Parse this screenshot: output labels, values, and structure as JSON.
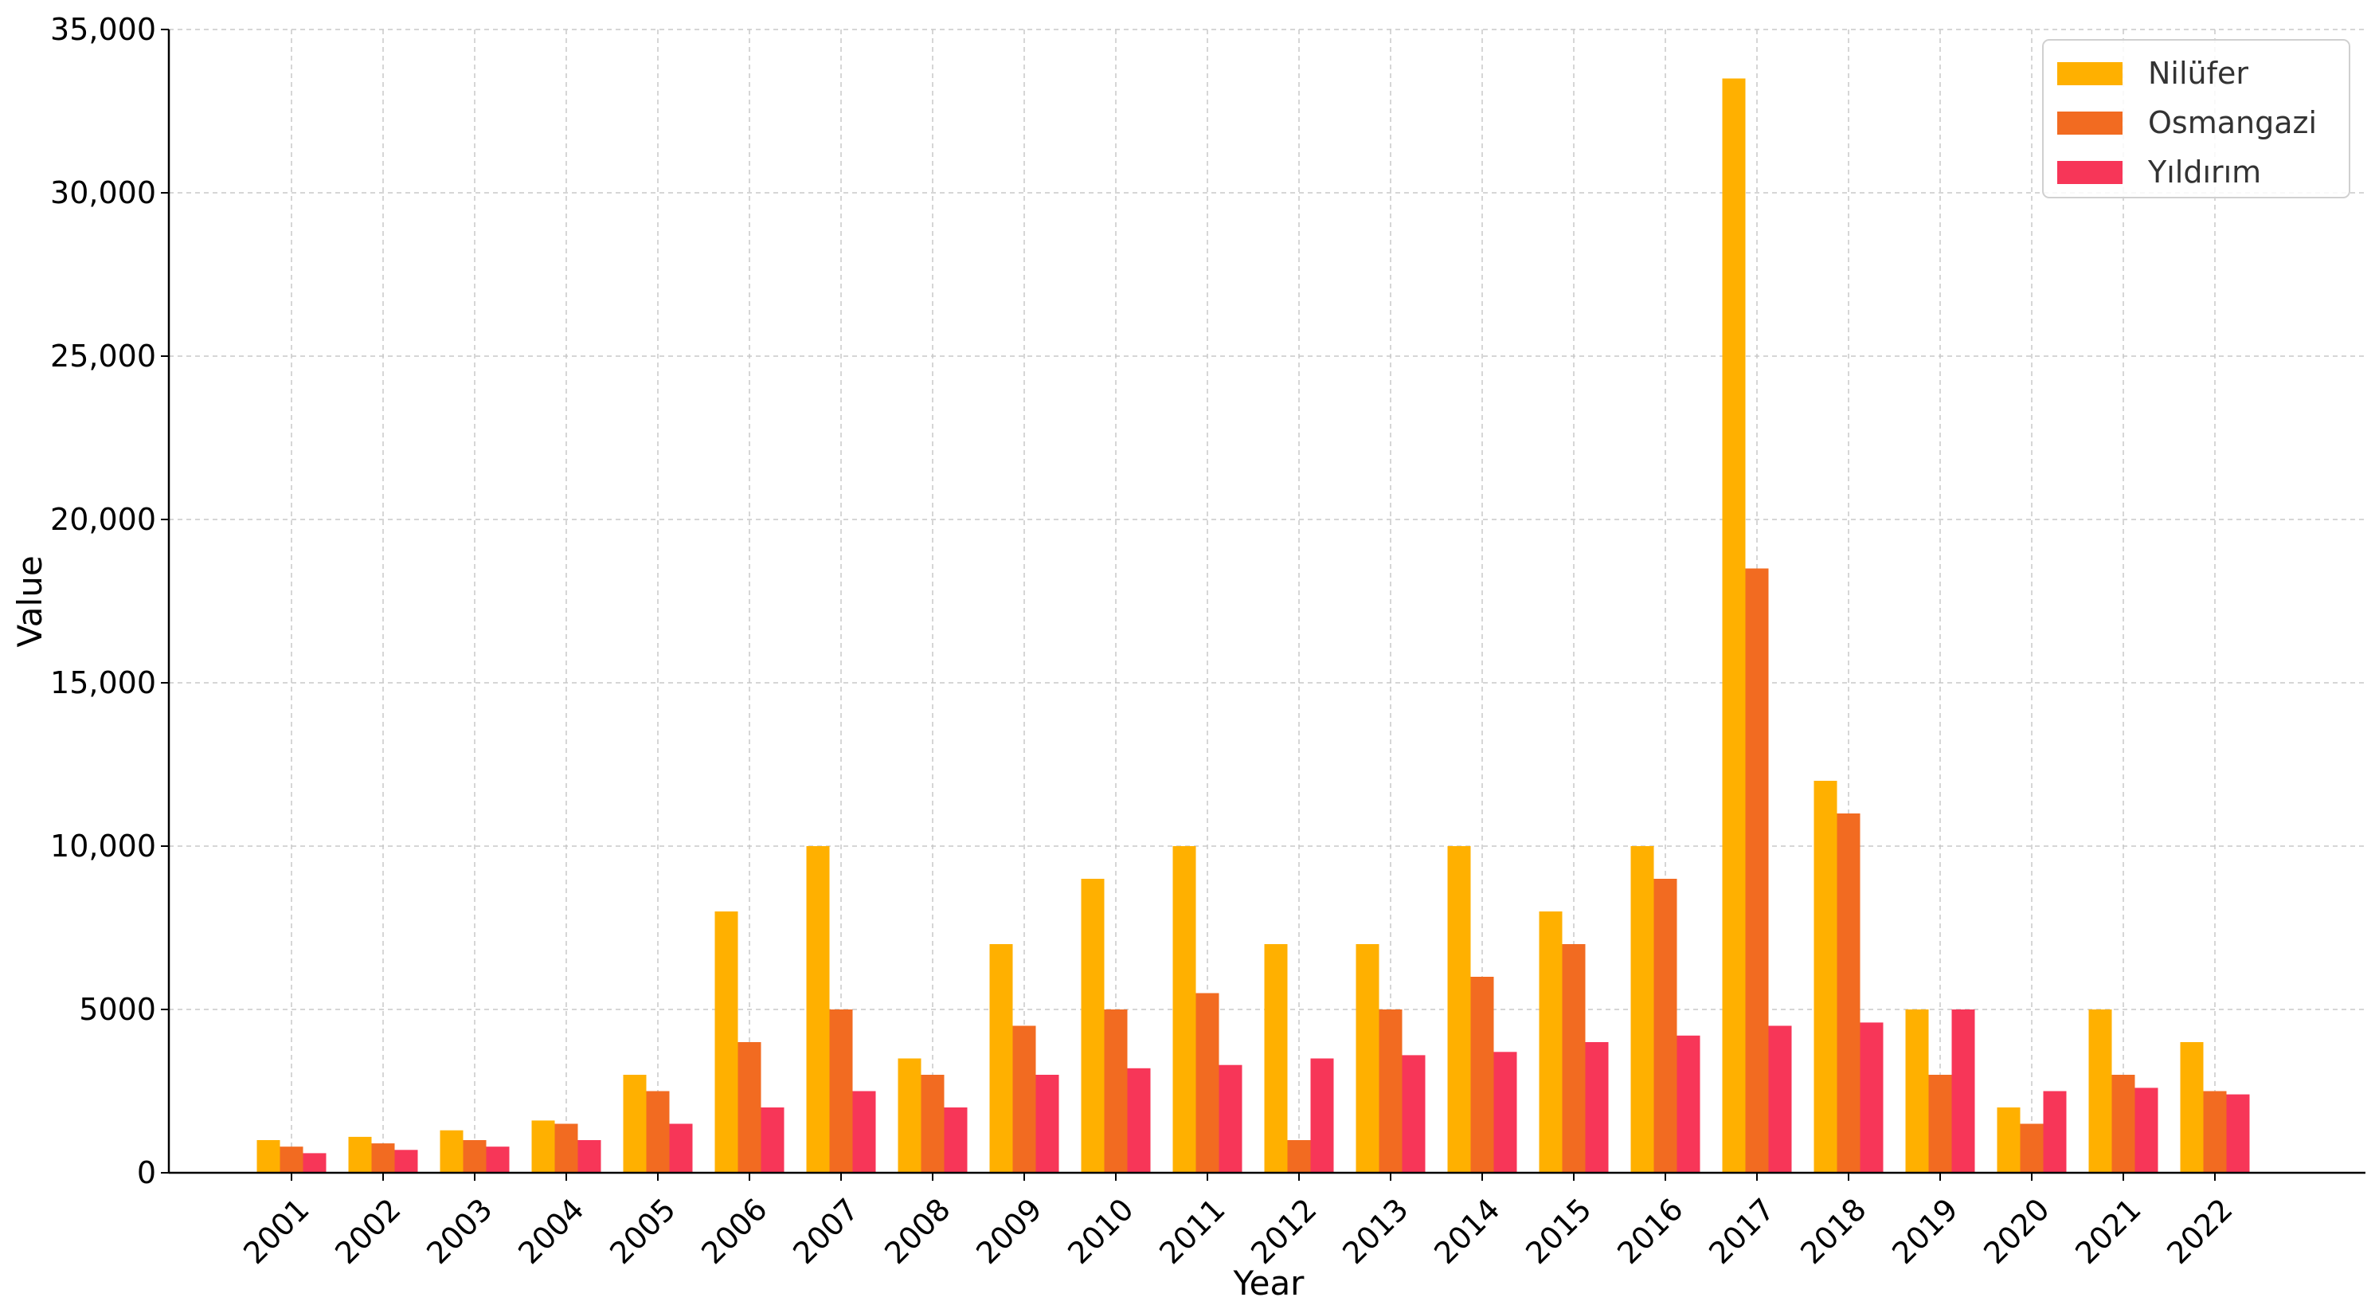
{
  "chart_data": {
    "type": "bar",
    "xlabel": "Year",
    "ylabel": "Value",
    "ylim": [
      0,
      35000
    ],
    "yticks": [
      0,
      5000,
      10000,
      15000,
      20000,
      25000,
      30000,
      35000
    ],
    "ytick_labels": [
      "0",
      "5000",
      "10,000",
      "15,000",
      "20,000",
      "25,000",
      "30,000",
      "35,000"
    ],
    "grid": true,
    "legend_position": "top-right",
    "categories": [
      "2001",
      "2002",
      "2003",
      "2004",
      "2005",
      "2006",
      "2007",
      "2008",
      "2009",
      "2010",
      "2011",
      "2012",
      "2013",
      "2014",
      "2015",
      "2016",
      "2017",
      "2018",
      "2019",
      "2020",
      "2021",
      "2022"
    ],
    "series": [
      {
        "name": "Nilüfer",
        "color": "#FFB000",
        "values": [
          1000,
          1100,
          1300,
          1600,
          3000,
          8000,
          10000,
          3500,
          7000,
          9000,
          10000,
          7000,
          7000,
          10000,
          8000,
          10000,
          33500,
          12000,
          5000,
          2000,
          5000,
          4000
        ]
      },
      {
        "name": "Osmangazi",
        "color": "#F26B21",
        "values": [
          800,
          900,
          1000,
          1500,
          2500,
          4000,
          5000,
          3000,
          4500,
          5000,
          5500,
          1000,
          5000,
          6000,
          7000,
          9000,
          18500,
          11000,
          3000,
          1500,
          3000,
          2500
        ]
      },
      {
        "name": "Yıldırım",
        "color": "#F73658",
        "values": [
          600,
          700,
          800,
          1000,
          1500,
          2000,
          2500,
          2000,
          3000,
          3200,
          3300,
          3500,
          3600,
          3700,
          4000,
          4200,
          4500,
          4600,
          5000,
          2500,
          2600,
          2400
        ]
      }
    ]
  }
}
